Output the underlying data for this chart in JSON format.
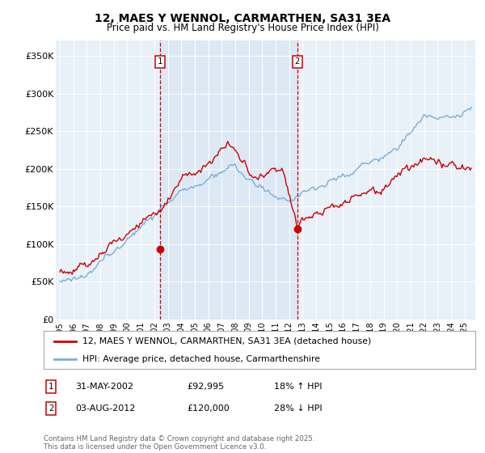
{
  "title": "12, MAES Y WENNOL, CARMARTHEN, SA31 3EA",
  "subtitle": "Price paid vs. HM Land Registry's House Price Index (HPI)",
  "ylabel_ticks": [
    "£0",
    "£50K",
    "£100K",
    "£150K",
    "£200K",
    "£250K",
    "£300K",
    "£350K"
  ],
  "ytick_values": [
    0,
    50000,
    100000,
    150000,
    200000,
    250000,
    300000,
    350000
  ],
  "ylim": [
    0,
    370000
  ],
  "red_color": "#cc0000",
  "blue_color": "#7bafd4",
  "shade_color": "#dce9f5",
  "bg_color": "#e8f0f8",
  "grid_color": "#ffffff",
  "marker1_date": "31-MAY-2002",
  "marker1_price": "£92,995",
  "marker1_hpi": "18% ↑ HPI",
  "marker2_date": "03-AUG-2012",
  "marker2_price": "£120,000",
  "marker2_hpi": "28% ↓ HPI",
  "legend_line1": "12, MAES Y WENNOL, CARMARTHEN, SA31 3EA (detached house)",
  "legend_line2": "HPI: Average price, detached house, Carmarthenshire",
  "footer": "Contains HM Land Registry data © Crown copyright and database right 2025.\nThis data is licensed under the Open Government Licence v3.0.",
  "marker1_x": 2002.42,
  "marker2_x": 2012.59,
  "marker1_y": 92995,
  "marker2_y": 120000,
  "xlim_left": 1994.7,
  "xlim_right": 2025.8
}
